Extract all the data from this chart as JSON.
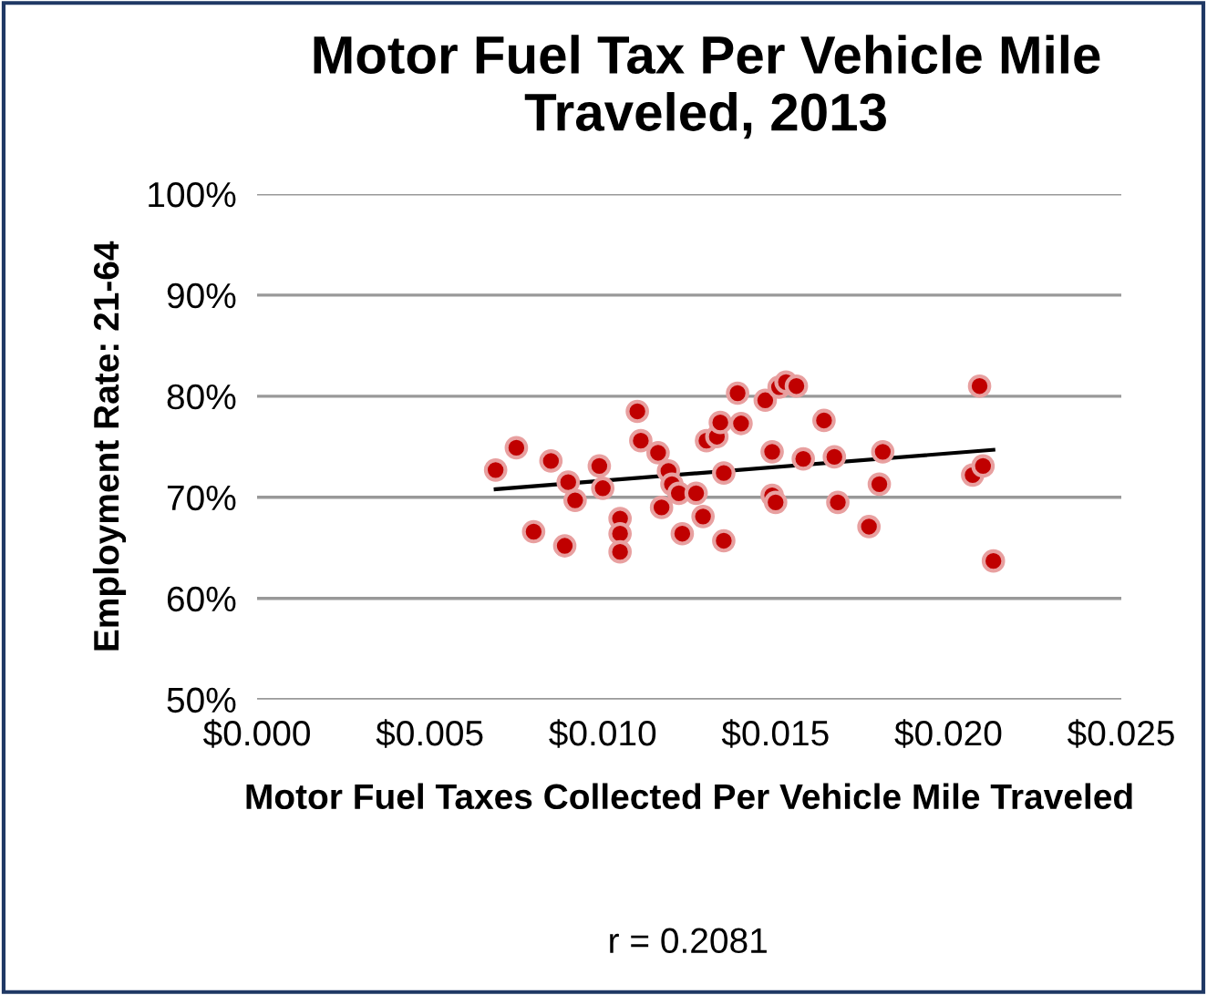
{
  "chart_data": {
    "type": "scatter",
    "title": "Motor Fuel Tax Per Vehicle Mile Traveled, 2013",
    "xlabel": "Motor Fuel Taxes Collected Per Vehicle Mile Traveled",
    "ylabel": "Employment Rate: 21-64",
    "annotations": [
      "r = 0.2081"
    ],
    "series": [
      {
        "color": "#c00000",
        "marker": "circle",
        "x": [
          0.0069,
          0.0075,
          0.008,
          0.0085,
          0.0089,
          0.009,
          0.0092,
          0.0099,
          0.01,
          0.0105,
          0.0105,
          0.0105,
          0.011,
          0.0111,
          0.0116,
          0.0117,
          0.0119,
          0.012,
          0.0122,
          0.0123,
          0.0127,
          0.0129,
          0.013,
          0.0133,
          0.0134,
          0.0135,
          0.0135,
          0.0139,
          0.014,
          0.0147,
          0.0149,
          0.0149,
          0.015,
          0.0151,
          0.0153,
          0.0156,
          0.0158,
          0.0164,
          0.0167,
          0.0168,
          0.0177,
          0.018,
          0.0181,
          0.0207,
          0.0209,
          0.021,
          0.0213
        ],
        "values": [
          72.7,
          74.9,
          66.6,
          73.6,
          65.2,
          71.5,
          69.7,
          73.1,
          70.9,
          67.9,
          66.4,
          64.6,
          78.5,
          75.6,
          74.4,
          69.0,
          72.6,
          71.3,
          70.4,
          66.4,
          70.4,
          68.1,
          75.6,
          76.0,
          77.4,
          72.4,
          65.7,
          80.3,
          77.3,
          79.6,
          74.5,
          70.2,
          69.5,
          80.9,
          81.4,
          81.0,
          73.8,
          77.6,
          74.0,
          69.5,
          67.1,
          71.3,
          74.5,
          72.2,
          81.0,
          73.1,
          63.7
        ]
      },
      {
        "type": "line",
        "color": "#000000",
        "x": [
          0.0069,
          0.0213
        ],
        "values": [
          70.8,
          74.7
        ]
      }
    ],
    "xlim": [
      0,
      0.025
    ],
    "xticks": [
      {
        "value": 0,
        "label": "$0.000"
      },
      {
        "value": 0.005,
        "label": "$0.005"
      },
      {
        "value": 0.01,
        "label": "$0.010"
      },
      {
        "value": 0.015,
        "label": "$0.015"
      },
      {
        "value": 0.02,
        "label": "$0.020"
      },
      {
        "value": 0.025,
        "label": "$0.025"
      }
    ],
    "ylim": [
      50,
      100
    ],
    "yticks": [
      {
        "value": 50,
        "label": "50%"
      },
      {
        "value": 60,
        "label": "60%"
      },
      {
        "value": 70,
        "label": "70%"
      },
      {
        "value": 80,
        "label": "80%"
      },
      {
        "value": 90,
        "label": "90%"
      },
      {
        "value": 100,
        "label": "100%"
      }
    ],
    "grid": "y",
    "legend": false
  }
}
